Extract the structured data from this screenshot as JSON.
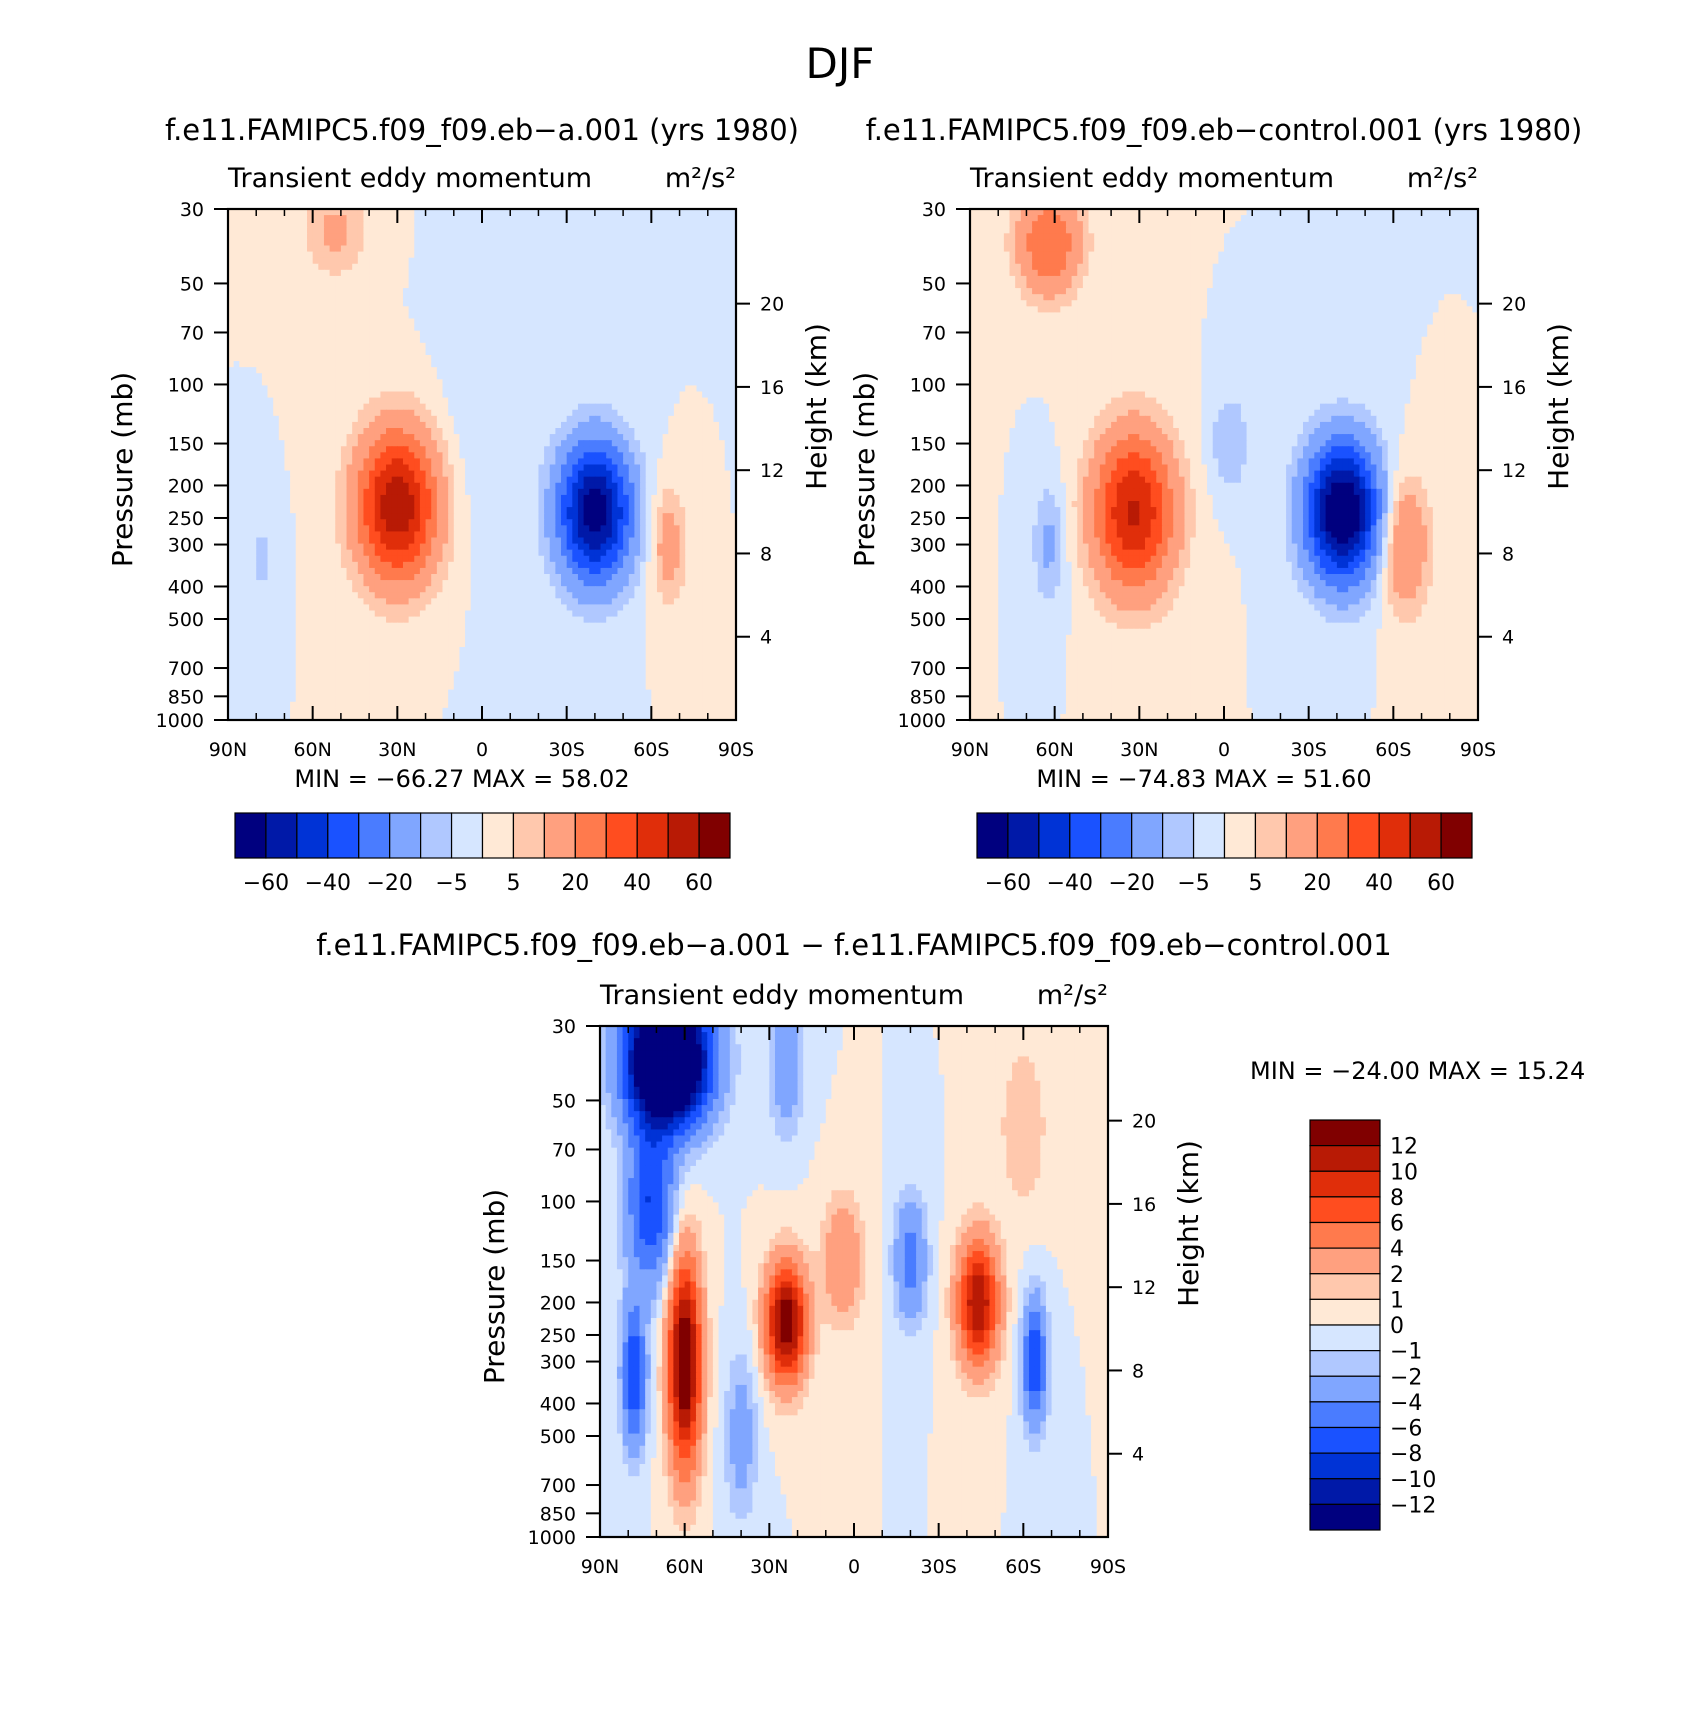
{
  "page_title": "DJF",
  "units_label_html": "m²/s²",
  "chart_data": [
    {
      "type": "heatmap",
      "id": "panel-a",
      "title": "f.e11.FAMIPC5.f09_f09.eb−a.001 (yrs 1980)",
      "subtitle": "Transient eddy momentum",
      "units": "m²/s²",
      "xlabel": "",
      "ylabel": "Pressure (mb)",
      "ylabel_right": "Height (km)",
      "x_ticks": [
        "90N",
        "60N",
        "30N",
        "0",
        "30S",
        "60S",
        "90S"
      ],
      "x_range": [
        90,
        -90
      ],
      "y_ticks": [
        30,
        50,
        70,
        100,
        150,
        200,
        250,
        300,
        400,
        500,
        700,
        850,
        1000
      ],
      "y_range": [
        30,
        1000
      ],
      "height_ticks": [
        20,
        16,
        12,
        8,
        4
      ],
      "stats": {
        "min_label": "MIN =",
        "min": "−66.27",
        "max_label": "MAX =",
        "max": "58.02"
      },
      "colorbar": {
        "orientation": "horizontal",
        "labels": [
          "−60",
          "−40",
          "−20",
          "−5",
          "5",
          "20",
          "40",
          "60"
        ],
        "colors": [
          "#00007f",
          "#0019a8",
          "#0033d6",
          "#1a52ff",
          "#4a7cff",
          "#80a6ff",
          "#b0c8ff",
          "#d6e6ff",
          "#ffe9d6",
          "#ffc8ad",
          "#ffa07f",
          "#ff7a4d",
          "#ff4d1f",
          "#e02e0a",
          "#b81a05",
          "#800000"
        ]
      },
      "features": [
        {
          "lat": 30,
          "p": 230,
          "amp": 58.02,
          "wlat": 10,
          "wlogp": 0.36
        },
        {
          "lat": -40,
          "p": 240,
          "amp": -66.27,
          "wlat": 9,
          "wlogp": 0.33
        },
        {
          "lat": -66,
          "p": 300,
          "amp": 15,
          "wlat": 4.5,
          "wlogp": 0.28
        },
        {
          "lat": 52,
          "p": 35,
          "amp": 12,
          "wlat": 8,
          "wlogp": 0.22
        },
        {
          "lat": 78,
          "p": 330,
          "amp": -6,
          "wlat": 4,
          "wlogp": 0.25
        },
        {
          "lat": 0,
          "p": 130,
          "amp": -4,
          "wlat": 10,
          "wlogp": 0.6
        }
      ]
    },
    {
      "type": "heatmap",
      "id": "panel-b",
      "title": "f.e11.FAMIPC5.f09_f09.eb−control.001 (yrs 1980)",
      "subtitle": "Transient eddy momentum",
      "units": "m²/s²",
      "xlabel": "",
      "ylabel": "Pressure (mb)",
      "ylabel_right": "Height (km)",
      "x_ticks": [
        "90N",
        "60N",
        "30N",
        "0",
        "30S",
        "60S",
        "90S"
      ],
      "x_range": [
        90,
        -90
      ],
      "y_ticks": [
        30,
        50,
        70,
        100,
        150,
        200,
        250,
        300,
        400,
        500,
        700,
        850,
        1000
      ],
      "y_range": [
        30,
        1000
      ],
      "height_ticks": [
        20,
        16,
        12,
        8,
        4
      ],
      "stats": {
        "min_label": "MIN =",
        "min": "−74.83",
        "max_label": "MAX =",
        "max": "51.60"
      },
      "colorbar": {
        "orientation": "horizontal",
        "labels": [
          "−60",
          "−40",
          "−20",
          "−5",
          "5",
          "20",
          "40",
          "60"
        ],
        "colors": [
          "#00007f",
          "#0019a8",
          "#0033d6",
          "#1a52ff",
          "#4a7cff",
          "#80a6ff",
          "#b0c8ff",
          "#d6e6ff",
          "#ffe9d6",
          "#ffc8ad",
          "#ffa07f",
          "#ff7a4d",
          "#ff4d1f",
          "#e02e0a",
          "#b81a05",
          "#800000"
        ]
      },
      "features": [
        {
          "lat": 32,
          "p": 240,
          "amp": 51.6,
          "wlat": 10,
          "wlogp": 0.38
        },
        {
          "lat": -42,
          "p": 240,
          "amp": -74.83,
          "wlat": 9,
          "wlogp": 0.33
        },
        {
          "lat": -64,
          "p": 300,
          "amp": 22,
          "wlat": 6,
          "wlogp": 0.32
        },
        {
          "lat": 62,
          "p": 38,
          "amp": 30,
          "wlat": 8,
          "wlogp": 0.25
        },
        {
          "lat": 62,
          "p": 300,
          "amp": -12,
          "wlat": 4,
          "wlogp": 0.3
        },
        {
          "lat": -2,
          "p": 150,
          "amp": -10,
          "wlat": 5,
          "wlogp": 0.25
        }
      ]
    },
    {
      "type": "heatmap",
      "id": "panel-diff",
      "title": "f.e11.FAMIPC5.f09_f09.eb−a.001 − f.e11.FAMIPC5.f09_f09.eb−control.001",
      "subtitle": "Transient eddy momentum",
      "units": "m²/s²",
      "xlabel": "",
      "ylabel": "Pressure (mb)",
      "ylabel_right": "Height (km)",
      "x_ticks": [
        "90N",
        "60N",
        "30N",
        "0",
        "30S",
        "60S",
        "90S"
      ],
      "x_range": [
        90,
        -90
      ],
      "y_ticks": [
        30,
        50,
        70,
        100,
        150,
        200,
        250,
        300,
        400,
        500,
        700,
        850,
        1000
      ],
      "y_range": [
        30,
        1000
      ],
      "height_ticks": [
        20,
        16,
        12,
        8,
        4
      ],
      "stats": {
        "min_label": "MIN =",
        "min": "−24.00",
        "max_label": "MAX =",
        "max": "15.24"
      },
      "colorbar": {
        "orientation": "vertical",
        "labels": [
          "12",
          "10",
          "8",
          "6",
          "4",
          "2",
          "1",
          "0",
          "−1",
          "−2",
          "−4",
          "−6",
          "−8",
          "−10",
          "−12"
        ],
        "colors": [
          "#00007f",
          "#0019a8",
          "#0033d6",
          "#1a52ff",
          "#4a7cff",
          "#80a6ff",
          "#b0c8ff",
          "#d6e6ff",
          "#ffe9d6",
          "#ffc8ad",
          "#ffa07f",
          "#ff7a4d",
          "#ff4d1f",
          "#e02e0a",
          "#b81a05",
          "#800000"
        ]
      },
      "features": [
        {
          "lat": 66,
          "p": 38,
          "amp": -24,
          "wlat": 10,
          "wlogp": 0.3
        },
        {
          "lat": 60,
          "p": 300,
          "amp": 15.24,
          "wlat": 4,
          "wlogp": 0.5
        },
        {
          "lat": 24,
          "p": 230,
          "amp": 14,
          "wlat": 5,
          "wlogp": 0.28
        },
        {
          "lat": -44,
          "p": 200,
          "amp": 12,
          "wlat": 5,
          "wlogp": 0.3
        },
        {
          "lat": -64,
          "p": 300,
          "amp": -8,
          "wlat": 3,
          "wlogp": 0.3
        },
        {
          "lat": 78,
          "p": 330,
          "amp": -8,
          "wlat": 3,
          "wlogp": 0.35
        },
        {
          "lat": 72,
          "p": 100,
          "amp": -8,
          "wlat": 6,
          "wlogp": 0.4
        },
        {
          "lat": -20,
          "p": 150,
          "amp": -5,
          "wlat": 4,
          "wlogp": 0.3
        },
        {
          "lat": 4,
          "p": 150,
          "amp": 4,
          "wlat": 5,
          "wlogp": 0.3
        },
        {
          "lat": 40,
          "p": 500,
          "amp": -3,
          "wlat": 4,
          "wlogp": 0.4
        },
        {
          "lat": 24,
          "p": 40,
          "amp": -4,
          "wlat": 4,
          "wlogp": 0.3
        },
        {
          "lat": -60,
          "p": 60,
          "amp": 2,
          "wlat": 6,
          "wlogp": 0.4
        }
      ]
    }
  ]
}
